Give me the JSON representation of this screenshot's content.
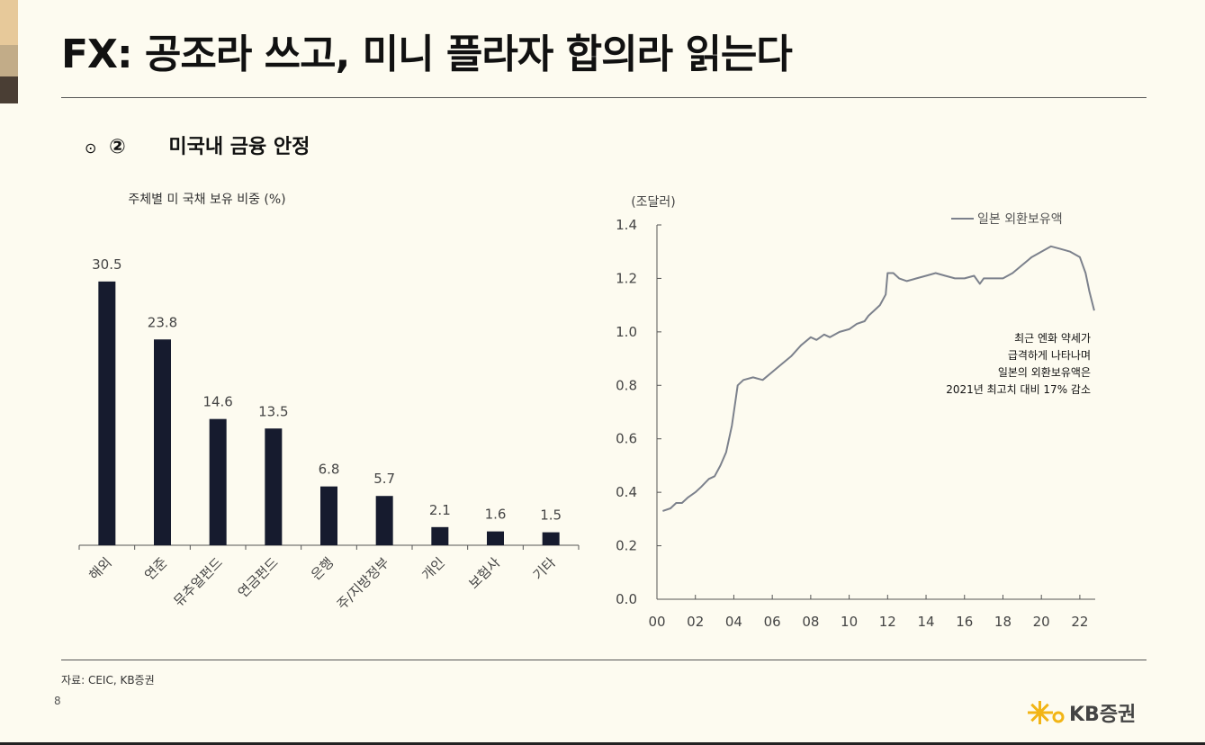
{
  "page": {
    "title": "FX: 공조라 쓰고, 미니 플라자 합의라 읽는다",
    "section_bullet": "⊙",
    "section_number": "②",
    "section_title": "미국내 금융 안정",
    "source": "자료: CEIC, KB증권",
    "page_number": "8",
    "logo_text": "KB증권",
    "accent_colors": [
      "#e7c99a",
      "#c2ac88",
      "#4a3e34"
    ]
  },
  "chart_data": [
    {
      "type": "bar",
      "title": "주체별 미 국채 보유 비중 (%)",
      "categories": [
        "해외",
        "연준",
        "뮤추얼펀드",
        "연금펀드",
        "은행",
        "주/지방정부",
        "개인",
        "보험사",
        "기타"
      ],
      "values": [
        30.5,
        23.8,
        14.6,
        13.5,
        6.8,
        5.7,
        2.1,
        1.6,
        1.5
      ],
      "value_labels": [
        "30.5",
        "23.8",
        "14.6",
        "13.5",
        "6.8",
        "5.7",
        "2.1",
        "1.6",
        "1.5"
      ],
      "bar_color": "#161b2e",
      "ylim": [
        0,
        36
      ]
    },
    {
      "type": "line",
      "ylabel": "(조달러)",
      "ylim": [
        0.0,
        1.4
      ],
      "yticks": [
        "1.4",
        "1.2",
        "1.0",
        "0.8",
        "0.6",
        "0.4",
        "0.2",
        "0.0"
      ],
      "ytick_values": [
        1.4,
        1.2,
        1.0,
        0.8,
        0.6,
        0.4,
        0.2,
        0.0
      ],
      "xlim": [
        2000,
        2022.8
      ],
      "xticks": [
        "00",
        "02",
        "04",
        "06",
        "08",
        "10",
        "12",
        "14",
        "16",
        "18",
        "20",
        "22"
      ],
      "xtick_values": [
        2000,
        2002,
        2004,
        2006,
        2008,
        2010,
        2012,
        2014,
        2016,
        2018,
        2020,
        2022
      ],
      "legend": "top-right",
      "annotation": [
        "최근 엔화 약세가",
        "급격하게 나타나며",
        "일본의 외환보유액은",
        "2021년 최고치 대비 17% 감소"
      ],
      "series": [
        {
          "name": "일본 외환보유액",
          "color": "#7c818c",
          "x": [
            2000.3,
            2000.7,
            2001.0,
            2001.3,
            2001.6,
            2002.0,
            2002.3,
            2002.7,
            2003.0,
            2003.3,
            2003.6,
            2003.9,
            2004.1,
            2004.2,
            2004.5,
            2005.0,
            2005.5,
            2006.0,
            2006.5,
            2007.0,
            2007.5,
            2008.0,
            2008.3,
            2008.7,
            2009.0,
            2009.5,
            2010.0,
            2010.4,
            2010.8,
            2011.0,
            2011.3,
            2011.6,
            2011.9,
            2012.0,
            2012.3,
            2012.6,
            2013.0,
            2013.5,
            2014.0,
            2014.5,
            2015.0,
            2015.5,
            2016.0,
            2016.5,
            2016.8,
            2017.0,
            2017.5,
            2018.0,
            2018.5,
            2019.0,
            2019.5,
            2020.0,
            2020.5,
            2021.0,
            2021.5,
            2022.0,
            2022.3,
            2022.5,
            2022.75
          ],
          "y": [
            0.33,
            0.34,
            0.36,
            0.36,
            0.38,
            0.4,
            0.42,
            0.45,
            0.46,
            0.5,
            0.55,
            0.65,
            0.75,
            0.8,
            0.82,
            0.83,
            0.82,
            0.85,
            0.88,
            0.91,
            0.95,
            0.98,
            0.97,
            0.99,
            0.98,
            1.0,
            1.01,
            1.03,
            1.04,
            1.06,
            1.08,
            1.1,
            1.14,
            1.22,
            1.22,
            1.2,
            1.19,
            1.2,
            1.21,
            1.22,
            1.21,
            1.2,
            1.2,
            1.21,
            1.18,
            1.2,
            1.2,
            1.2,
            1.22,
            1.25,
            1.28,
            1.3,
            1.32,
            1.31,
            1.3,
            1.28,
            1.22,
            1.15,
            1.08
          ]
        }
      ]
    }
  ]
}
